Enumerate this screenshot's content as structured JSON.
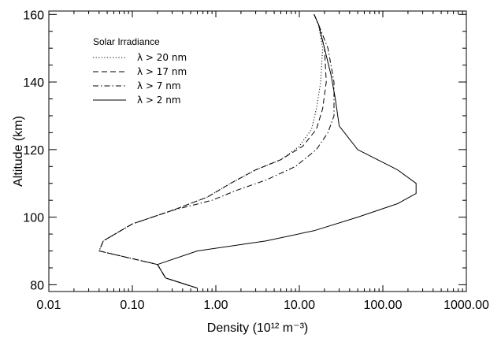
{
  "chart_data": {
    "type": "line",
    "xscale": "log",
    "xlim": [
      0.01,
      1000
    ],
    "ylim": [
      78,
      161
    ],
    "xticks": [
      {
        "value": 0.01,
        "label": "0.01"
      },
      {
        "value": 0.1,
        "label": "0.10"
      },
      {
        "value": 1,
        "label": "1.00"
      },
      {
        "value": 10,
        "label": "10.00"
      },
      {
        "value": 100,
        "label": "100.00"
      },
      {
        "value": 1000,
        "label": "1000.00"
      }
    ],
    "yticks": [
      80,
      100,
      120,
      140,
      160
    ],
    "xlabel": "Density (10¹² m⁻³)",
    "ylabel": "Altitude (km)",
    "legend": {
      "title": "Solar Irradiance",
      "placement": "top-left",
      "entries": [
        {
          "label": "λ > 20 nm",
          "dash": "dotted"
        },
        {
          "label": "λ > 17 nm",
          "dash": "dashed"
        },
        {
          "label": "λ > 7 nm",
          "dash": "dashdot"
        },
        {
          "label": "λ > 2 nm",
          "dash": "solid"
        }
      ]
    },
    "series": [
      {
        "name": "λ > 20 nm",
        "dash": "dotted",
        "points": [
          [
            0.6,
            79
          ],
          [
            0.25,
            82
          ],
          [
            0.2,
            86
          ],
          [
            0.04,
            90
          ],
          [
            0.045,
            93
          ],
          [
            0.1,
            98
          ],
          [
            0.3,
            102
          ],
          [
            0.8,
            106
          ],
          [
            1.5,
            110
          ],
          [
            3,
            114
          ],
          [
            6,
            117
          ],
          [
            10,
            121
          ],
          [
            14,
            126
          ],
          [
            16,
            132
          ],
          [
            18,
            140
          ],
          [
            19,
            150
          ],
          [
            17,
            157
          ],
          [
            15,
            160
          ]
        ]
      },
      {
        "name": "λ > 17 nm",
        "dash": "dashed",
        "points": [
          [
            0.6,
            79
          ],
          [
            0.25,
            82
          ],
          [
            0.2,
            86
          ],
          [
            0.04,
            90
          ],
          [
            0.045,
            93
          ],
          [
            0.1,
            98
          ],
          [
            0.3,
            102
          ],
          [
            0.8,
            106
          ],
          [
            1.5,
            110
          ],
          [
            3,
            114
          ],
          [
            6,
            117
          ],
          [
            11,
            121
          ],
          [
            16,
            126
          ],
          [
            19,
            132
          ],
          [
            21,
            140
          ],
          [
            20,
            150
          ],
          [
            17,
            157
          ],
          [
            15,
            160
          ]
        ]
      },
      {
        "name": "λ > 7 nm",
        "dash": "dashdot",
        "points": [
          [
            0.6,
            79
          ],
          [
            0.25,
            82
          ],
          [
            0.2,
            86
          ],
          [
            0.04,
            90
          ],
          [
            0.045,
            93
          ],
          [
            0.1,
            98
          ],
          [
            0.3,
            102
          ],
          [
            0.9,
            105
          ],
          [
            1.8,
            108
          ],
          [
            4,
            111
          ],
          [
            9,
            115
          ],
          [
            16,
            120
          ],
          [
            22,
            125
          ],
          [
            26,
            130
          ],
          [
            26,
            140
          ],
          [
            22,
            150
          ],
          [
            17,
            157
          ],
          [
            15,
            160
          ]
        ]
      },
      {
        "name": "λ > 2 nm",
        "dash": "solid",
        "points": [
          [
            0.6,
            79
          ],
          [
            0.25,
            82
          ],
          [
            0.2,
            86
          ],
          [
            0.6,
            90
          ],
          [
            4,
            93
          ],
          [
            15,
            96
          ],
          [
            50,
            100
          ],
          [
            150,
            104
          ],
          [
            250,
            107
          ],
          [
            250,
            110
          ],
          [
            150,
            114
          ],
          [
            50,
            120
          ],
          [
            30,
            127
          ],
          [
            27,
            135
          ],
          [
            24,
            142
          ],
          [
            20,
            150
          ],
          [
            17,
            157
          ],
          [
            15,
            160
          ]
        ]
      }
    ]
  }
}
